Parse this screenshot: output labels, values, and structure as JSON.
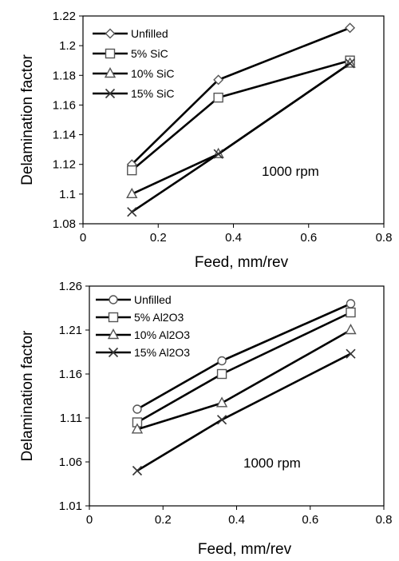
{
  "chart_data": [
    {
      "type": "line",
      "title": "",
      "xlabel": "Feed, mm/rev",
      "ylabel": "Delamination factor",
      "xlim": [
        0,
        0.8
      ],
      "ylim": [
        1.08,
        1.22
      ],
      "xticks": [
        "0",
        "0.2",
        "0.4",
        "0.6",
        "0.8"
      ],
      "yticks": [
        "1.08",
        "1.1",
        "1.12",
        "1.14",
        "1.16",
        "1.18",
        "1.2",
        "1.22"
      ],
      "grid": false,
      "legend_position": "top-left",
      "annotation": "1000 rpm",
      "x": [
        0.13,
        0.36,
        0.71
      ],
      "series": [
        {
          "name": "Unfilled",
          "marker": "diamond",
          "values": [
            1.12,
            1.177,
            1.212
          ]
        },
        {
          "name": "5% SiC",
          "marker": "square",
          "values": [
            1.116,
            1.165,
            1.19
          ]
        },
        {
          "name": "10% SiC",
          "marker": "triangle",
          "values": [
            1.1,
            1.127,
            1.188
          ]
        },
        {
          "name": "15% SiC",
          "marker": "x",
          "values": [
            1.088,
            1.127,
            1.188
          ]
        }
      ]
    },
    {
      "type": "line",
      "title": "",
      "xlabel": "Feed, mm/rev",
      "ylabel": "Delamination factor",
      "xlim": [
        0,
        0.8
      ],
      "ylim": [
        1.01,
        1.26
      ],
      "xticks": [
        "0",
        "0.2",
        "0.4",
        "0.6",
        "0.8"
      ],
      "yticks": [
        "1.01",
        "1.06",
        "1.11",
        "1.16",
        "1.21",
        "1.26"
      ],
      "grid": false,
      "legend_position": "top-left",
      "annotation": "1000 rpm",
      "x": [
        0.13,
        0.36,
        0.71
      ],
      "series": [
        {
          "name": "Unfilled",
          "marker": "circle",
          "values": [
            1.12,
            1.175,
            1.24
          ]
        },
        {
          "name": "5% Al2O3",
          "marker": "square",
          "values": [
            1.105,
            1.16,
            1.23
          ]
        },
        {
          "name": "10% Al2O3",
          "marker": "triangle",
          "values": [
            1.097,
            1.127,
            1.21
          ]
        },
        {
          "name": "15% Al2O3",
          "marker": "x",
          "values": [
            1.05,
            1.108,
            1.183
          ]
        }
      ]
    }
  ]
}
